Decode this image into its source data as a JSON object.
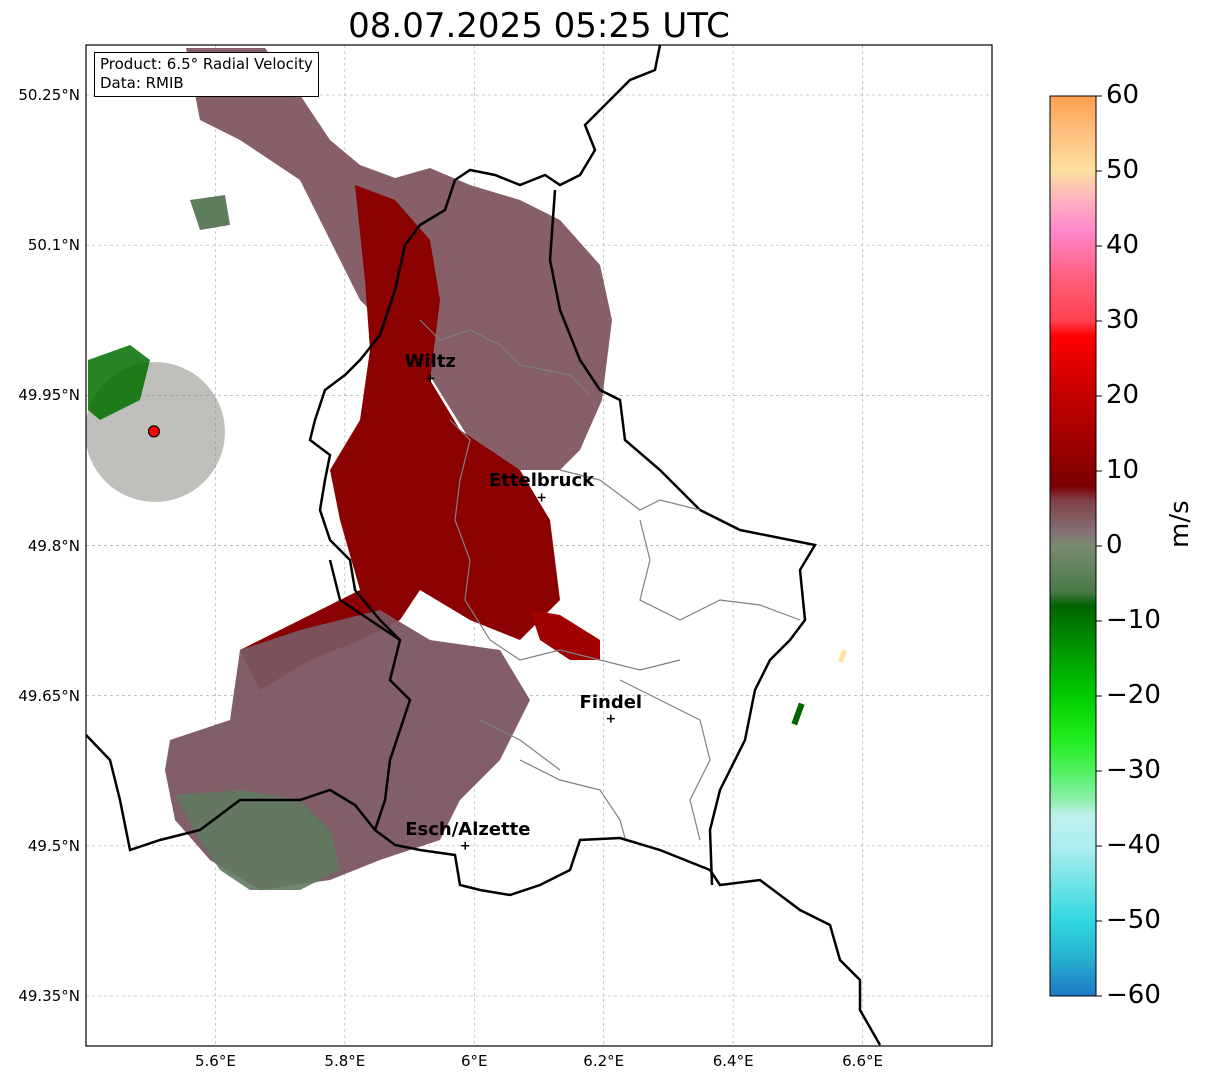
{
  "title": "08.07.2025 05:25 UTC",
  "info": {
    "product": "Product: 6.5° Radial Velocity",
    "source": "Data: RMIB"
  },
  "map": {
    "lon_range": [
      5.4,
      6.8
    ],
    "lat_range": [
      49.3,
      50.3
    ],
    "lat_ticks": [
      {
        "value": 50.25,
        "label": "50.25°N"
      },
      {
        "value": 50.1,
        "label": "50.1°N"
      },
      {
        "value": 49.95,
        "label": "49.95°N"
      },
      {
        "value": 49.8,
        "label": "49.8°N"
      },
      {
        "value": 49.65,
        "label": "49.65°N"
      },
      {
        "value": 49.5,
        "label": "49.5°N"
      },
      {
        "value": 49.35,
        "label": "49.35°N"
      }
    ],
    "lon_ticks": [
      {
        "value": 5.6,
        "label": "5.6°E"
      },
      {
        "value": 5.8,
        "label": "5.8°E"
      },
      {
        "value": 6.0,
        "label": "6°E"
      },
      {
        "value": 6.2,
        "label": "6.2°E"
      },
      {
        "value": 6.4,
        "label": "6.4°E"
      },
      {
        "value": 6.6,
        "label": "6.6°E"
      }
    ],
    "gridlines": true,
    "radar_site": {
      "lon": 5.505,
      "lat": 49.914,
      "color": "#ff0000"
    },
    "cities": [
      {
        "name": "Wiltz",
        "lon": 5.932,
        "lat": 49.967
      },
      {
        "name": "Ettelbruck",
        "lon": 6.104,
        "lat": 49.848
      },
      {
        "name": "Findel",
        "lon": 6.211,
        "lat": 49.627
      },
      {
        "name": "Esch/Alzette",
        "lon": 5.986,
        "lat": 49.5
      }
    ]
  },
  "colorbar": {
    "label": "m/s",
    "vmin": -60,
    "vmax": 60,
    "ticks": [
      {
        "value": 60,
        "label": "60"
      },
      {
        "value": 50,
        "label": "50"
      },
      {
        "value": 40,
        "label": "40"
      },
      {
        "value": 30,
        "label": "30"
      },
      {
        "value": 20,
        "label": "20"
      },
      {
        "value": 10,
        "label": "10"
      },
      {
        "value": 0,
        "label": "0"
      },
      {
        "value": -10,
        "label": "−10"
      },
      {
        "value": -20,
        "label": "−20"
      },
      {
        "value": -30,
        "label": "−30"
      },
      {
        "value": -40,
        "label": "−40"
      },
      {
        "value": -50,
        "label": "−50"
      },
      {
        "value": -60,
        "label": "−60"
      }
    ],
    "stops": [
      {
        "value": -60,
        "color": "#1f78c4"
      },
      {
        "value": -55,
        "color": "#27b0d0"
      },
      {
        "value": -50,
        "color": "#30d8e0"
      },
      {
        "value": -45,
        "color": "#70e4e6"
      },
      {
        "value": -40,
        "color": "#aeeef0"
      },
      {
        "value": -36,
        "color": "#bff0ee"
      },
      {
        "value": -34,
        "color": "#90f0b0"
      },
      {
        "value": -30,
        "color": "#50f060"
      },
      {
        "value": -26,
        "color": "#22ee22"
      },
      {
        "value": -20,
        "color": "#00cc00"
      },
      {
        "value": -15,
        "color": "#00a000"
      },
      {
        "value": -8,
        "color": "#006400"
      },
      {
        "value": -6,
        "color": "#4a7a4a"
      },
      {
        "value": 0,
        "color": "#7a8a70"
      },
      {
        "value": 2,
        "color": "#857075"
      },
      {
        "value": 6,
        "color": "#804048"
      },
      {
        "value": 8,
        "color": "#7a0000"
      },
      {
        "value": 14,
        "color": "#a00000"
      },
      {
        "value": 22,
        "color": "#d00000"
      },
      {
        "value": 28,
        "color": "#ff0000"
      },
      {
        "value": 30,
        "color": "#ff4050"
      },
      {
        "value": 36,
        "color": "#ff6080"
      },
      {
        "value": 42,
        "color": "#ff88cc"
      },
      {
        "value": 46,
        "color": "#ffb0c0"
      },
      {
        "value": 50,
        "color": "#ffe0a0"
      },
      {
        "value": 55,
        "color": "#ffc080"
      },
      {
        "value": 60,
        "color": "#ffa050"
      }
    ]
  }
}
